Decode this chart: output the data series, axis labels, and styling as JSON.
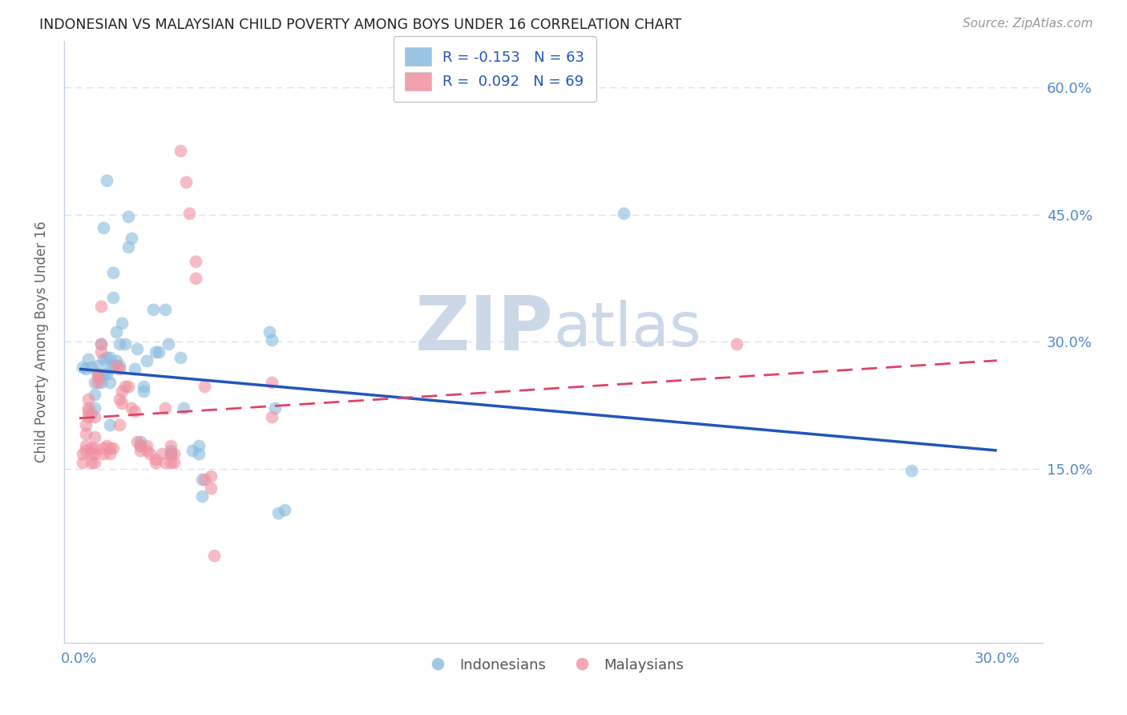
{
  "title": "INDONESIAN VS MALAYSIAN CHILD POVERTY AMONG BOYS UNDER 16 CORRELATION CHART",
  "source": "Source: ZipAtlas.com",
  "xlim": [
    -0.005,
    0.315
  ],
  "ylim": [
    -0.055,
    0.655
  ],
  "ylabel": "Child Poverty Among Boys Under 16",
  "legend_entries": [
    {
      "label": "R = -0.153   N = 63",
      "color": "#a8c8e8"
    },
    {
      "label": "R =  0.092   N = 69",
      "color": "#f5aabb"
    }
  ],
  "legend_bottom": [
    "Indonesians",
    "Malaysians"
  ],
  "indonesian_color": "#88bbdd",
  "malaysian_color": "#f090a0",
  "indonesian_line_color": "#2255bb",
  "malaysian_line_color": "#dd4466",
  "indo_line_x": [
    0.0,
    0.3
  ],
  "indo_line_y": [
    0.268,
    0.172
  ],
  "malay_line_x": [
    0.0,
    0.3
  ],
  "malay_line_y": [
    0.21,
    0.278
  ],
  "indonesians": [
    [
      0.001,
      0.27
    ],
    [
      0.002,
      0.268
    ],
    [
      0.003,
      0.28
    ],
    [
      0.004,
      0.215
    ],
    [
      0.004,
      0.27
    ],
    [
      0.005,
      0.252
    ],
    [
      0.005,
      0.238
    ],
    [
      0.005,
      0.222
    ],
    [
      0.006,
      0.272
    ],
    [
      0.006,
      0.262
    ],
    [
      0.007,
      0.298
    ],
    [
      0.007,
      0.26
    ],
    [
      0.007,
      0.252
    ],
    [
      0.008,
      0.435
    ],
    [
      0.008,
      0.28
    ],
    [
      0.008,
      0.262
    ],
    [
      0.009,
      0.49
    ],
    [
      0.009,
      0.282
    ],
    [
      0.009,
      0.262
    ],
    [
      0.01,
      0.282
    ],
    [
      0.01,
      0.268
    ],
    [
      0.01,
      0.252
    ],
    [
      0.01,
      0.202
    ],
    [
      0.011,
      0.382
    ],
    [
      0.011,
      0.352
    ],
    [
      0.011,
      0.272
    ],
    [
      0.012,
      0.312
    ],
    [
      0.012,
      0.278
    ],
    [
      0.013,
      0.298
    ],
    [
      0.013,
      0.272
    ],
    [
      0.014,
      0.322
    ],
    [
      0.015,
      0.298
    ],
    [
      0.016,
      0.448
    ],
    [
      0.016,
      0.412
    ],
    [
      0.017,
      0.422
    ],
    [
      0.018,
      0.268
    ],
    [
      0.019,
      0.292
    ],
    [
      0.02,
      0.182
    ],
    [
      0.02,
      0.178
    ],
    [
      0.021,
      0.248
    ],
    [
      0.021,
      0.242
    ],
    [
      0.022,
      0.278
    ],
    [
      0.024,
      0.338
    ],
    [
      0.025,
      0.288
    ],
    [
      0.026,
      0.288
    ],
    [
      0.028,
      0.338
    ],
    [
      0.029,
      0.298
    ],
    [
      0.03,
      0.172
    ],
    [
      0.03,
      0.168
    ],
    [
      0.033,
      0.282
    ],
    [
      0.034,
      0.222
    ],
    [
      0.037,
      0.172
    ],
    [
      0.039,
      0.178
    ],
    [
      0.039,
      0.168
    ],
    [
      0.04,
      0.138
    ],
    [
      0.04,
      0.118
    ],
    [
      0.062,
      0.312
    ],
    [
      0.063,
      0.302
    ],
    [
      0.064,
      0.222
    ],
    [
      0.065,
      0.098
    ],
    [
      0.067,
      0.102
    ],
    [
      0.178,
      0.452
    ],
    [
      0.272,
      0.148
    ]
  ],
  "malaysians": [
    [
      0.001,
      0.168
    ],
    [
      0.001,
      0.158
    ],
    [
      0.002,
      0.202
    ],
    [
      0.002,
      0.192
    ],
    [
      0.002,
      0.178
    ],
    [
      0.002,
      0.172
    ],
    [
      0.003,
      0.232
    ],
    [
      0.003,
      0.222
    ],
    [
      0.003,
      0.218
    ],
    [
      0.003,
      0.212
    ],
    [
      0.004,
      0.175
    ],
    [
      0.004,
      0.168
    ],
    [
      0.004,
      0.158
    ],
    [
      0.005,
      0.175
    ],
    [
      0.005,
      0.168
    ],
    [
      0.005,
      0.158
    ],
    [
      0.005,
      0.212
    ],
    [
      0.005,
      0.188
    ],
    [
      0.006,
      0.262
    ],
    [
      0.006,
      0.258
    ],
    [
      0.006,
      0.252
    ],
    [
      0.007,
      0.342
    ],
    [
      0.007,
      0.298
    ],
    [
      0.007,
      0.288
    ],
    [
      0.008,
      0.175
    ],
    [
      0.008,
      0.168
    ],
    [
      0.009,
      0.178
    ],
    [
      0.01,
      0.175
    ],
    [
      0.01,
      0.168
    ],
    [
      0.011,
      0.175
    ],
    [
      0.012,
      0.272
    ],
    [
      0.013,
      0.268
    ],
    [
      0.013,
      0.232
    ],
    [
      0.013,
      0.202
    ],
    [
      0.014,
      0.242
    ],
    [
      0.014,
      0.228
    ],
    [
      0.015,
      0.248
    ],
    [
      0.016,
      0.248
    ],
    [
      0.017,
      0.222
    ],
    [
      0.018,
      0.218
    ],
    [
      0.019,
      0.182
    ],
    [
      0.02,
      0.178
    ],
    [
      0.02,
      0.172
    ],
    [
      0.022,
      0.178
    ],
    [
      0.022,
      0.172
    ],
    [
      0.023,
      0.168
    ],
    [
      0.025,
      0.162
    ],
    [
      0.025,
      0.158
    ],
    [
      0.027,
      0.168
    ],
    [
      0.028,
      0.222
    ],
    [
      0.028,
      0.158
    ],
    [
      0.03,
      0.178
    ],
    [
      0.03,
      0.168
    ],
    [
      0.03,
      0.158
    ],
    [
      0.031,
      0.168
    ],
    [
      0.031,
      0.158
    ],
    [
      0.033,
      0.525
    ],
    [
      0.035,
      0.488
    ],
    [
      0.036,
      0.452
    ],
    [
      0.038,
      0.395
    ],
    [
      0.038,
      0.375
    ],
    [
      0.041,
      0.248
    ],
    [
      0.041,
      0.138
    ],
    [
      0.043,
      0.142
    ],
    [
      0.043,
      0.128
    ],
    [
      0.044,
      0.048
    ],
    [
      0.063,
      0.252
    ],
    [
      0.063,
      0.212
    ],
    [
      0.215,
      0.298
    ]
  ],
  "watermark_zip": "ZIP",
  "watermark_atlas": "atlas",
  "watermark_color": "#ccd8e8",
  "background_color": "#ffffff",
  "grid_color": "#d8e4f0"
}
